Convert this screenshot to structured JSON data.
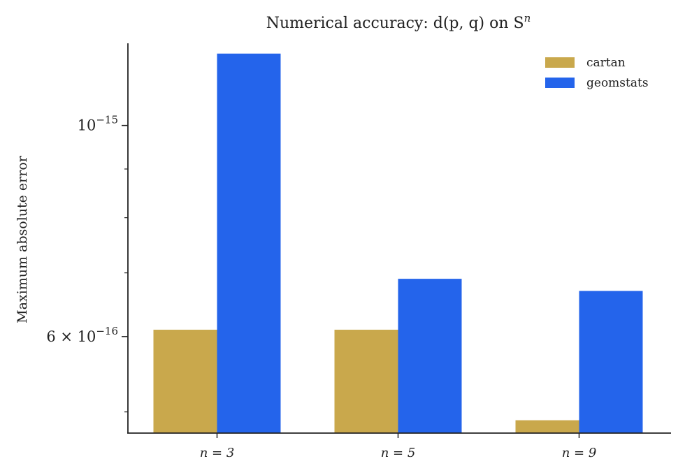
{
  "chart_data": {
    "type": "bar",
    "title": "Numerical accuracy: d(p, q) on S",
    "title_sup": "n",
    "ylabel": "Maximum absolute error",
    "xlabel": "",
    "yscale": "log",
    "ylim": [
      4.75e-16,
      1.22e-15
    ],
    "categories": [
      "n = 3",
      "n = 5",
      "n = 9"
    ],
    "series": [
      {
        "name": "cartan",
        "color": "#c9a84c",
        "values": [
          6.1e-16,
          6.1e-16,
          4.9e-16
        ]
      },
      {
        "name": "geomstats",
        "color": "#2464eb",
        "values": [
          1.19e-15,
          6.9e-16,
          6.7e-16
        ]
      }
    ],
    "y_ticks_major": [
      {
        "value": 1e-15,
        "base": "10",
        "exp": "−15",
        "mult": ""
      },
      {
        "value": 6e-16,
        "base": "10",
        "exp": "−16",
        "mult": "6 × "
      }
    ],
    "y_ticks_minor": [
      9e-16,
      8e-16,
      7e-16,
      5e-16
    ],
    "legend": {
      "position": "top-right"
    },
    "grid": false
  }
}
